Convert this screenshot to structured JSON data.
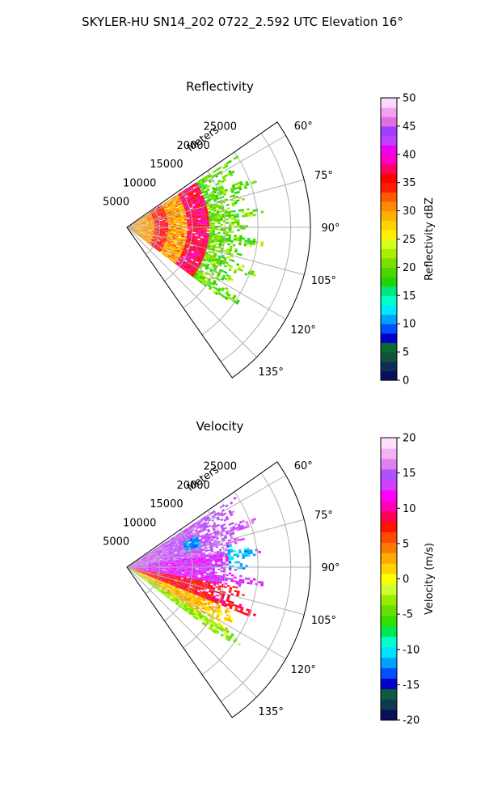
{
  "suptitle": "SKYLER-HU  SN14_202  0722_2.592 UTC Elevation 16°",
  "colors": {
    "grid": "#b0b0b0",
    "frame": "#000000",
    "reflectivity_colormap": [
      "#08105a",
      "#0e2e58",
      "#11523a",
      "#0a6a2e",
      "#0000c8",
      "#0050ff",
      "#00a0ff",
      "#00e6ff",
      "#00ffc8",
      "#00e680",
      "#22d400",
      "#4cd600",
      "#7ade00",
      "#a8f000",
      "#d8ff20",
      "#fff000",
      "#ffd200",
      "#ffb000",
      "#ff8c00",
      "#ff5a00",
      "#ff1e00",
      "#ff0000",
      "#ff0064",
      "#ff00c8",
      "#f000f0",
      "#c040ff",
      "#a040ff",
      "#e070e0",
      "#f4a0f4",
      "#ffd8ff"
    ],
    "velocity_colormap": [
      "#08105a",
      "#0e3a50",
      "#0c5a40",
      "#0000c8",
      "#0050ff",
      "#00a0ff",
      "#00e0ff",
      "#00ffcc",
      "#00e850",
      "#33e000",
      "#66e000",
      "#99ee00",
      "#ccff30",
      "#ffff00",
      "#ffd200",
      "#ffaa00",
      "#ff7a00",
      "#ff4a00",
      "#ff1400",
      "#ff0050",
      "#ff00b4",
      "#ff00ff",
      "#d040ff",
      "#b050ff",
      "#e080f0",
      "#f4b4f4",
      "#ffe0ff"
    ]
  },
  "chart_data": [
    {
      "type": "heatmap",
      "projection": "polar-sector",
      "title": "Reflectivity",
      "radial_axis_label": "Meters",
      "radial_ticks": [
        "5000",
        "10000",
        "15000",
        "20000",
        "25000"
      ],
      "radial_range": [
        0,
        28000
      ],
      "angle_range_deg": [
        55,
        145
      ],
      "angle_direction": "clockwise",
      "angle_zero": "north",
      "angle_tick_labels": [
        "60°",
        "75°",
        "90°",
        "105°",
        "120°",
        "135°"
      ],
      "grid": true,
      "colorbar": {
        "label": "Reflectivity dBZ",
        "range": [
          0,
          50
        ],
        "tick_labels": [
          "0",
          "5",
          "10",
          "15",
          "20",
          "25",
          "30",
          "35",
          "40",
          "45",
          "50"
        ]
      },
      "data_extent": {
        "angle_deg": [
          57,
          127
        ],
        "range_m": [
          0,
          21000
        ]
      },
      "field": [
        {
          "range_m": [
            0,
            9000
          ],
          "value": 30
        },
        {
          "range_m": [
            4000,
            6000
          ],
          "value": 35
        },
        {
          "range_m": [
            9000,
            12500
          ],
          "value": 37
        },
        {
          "range_m": [
            12500,
            21000
          ],
          "value": 20
        }
      ]
    },
    {
      "type": "heatmap",
      "projection": "polar-sector",
      "title": "Velocity",
      "radial_axis_label": "Meters",
      "radial_ticks": [
        "5000",
        "10000",
        "15000",
        "20000",
        "25000"
      ],
      "radial_range": [
        0,
        28000
      ],
      "angle_range_deg": [
        55,
        145
      ],
      "angle_direction": "clockwise",
      "angle_zero": "north",
      "angle_tick_labels": [
        "60°",
        "75°",
        "90°",
        "105°",
        "120°",
        "135°"
      ],
      "grid": true,
      "colorbar": {
        "label": "Velocity (m/s)",
        "range": [
          -20,
          20
        ],
        "tick_labels": [
          "-20",
          "-15",
          "-10",
          "-5",
          "0",
          "5",
          "10",
          "15",
          "20"
        ]
      },
      "data_extent": {
        "angle_deg": [
          57,
          127
        ],
        "range_m": [
          0,
          21000
        ]
      },
      "field": [
        {
          "angle_deg": [
            57,
            82
          ],
          "value": 15
        },
        {
          "angle_deg": [
            82,
            100
          ],
          "value": 13
        },
        {
          "angle_deg": [
            100,
            112
          ],
          "value": 8
        },
        {
          "angle_deg": [
            112,
            122
          ],
          "value": 2
        },
        {
          "angle_deg": [
            122,
            127
          ],
          "value": -3
        },
        {
          "angle_deg": [
            66,
            74
          ],
          "range_m": [
            9000,
            11500
          ],
          "value": -12
        },
        {
          "angle_deg": [
            78,
            90
          ],
          "range_m": [
            15500,
            20000
          ],
          "value": -11
        }
      ]
    }
  ]
}
